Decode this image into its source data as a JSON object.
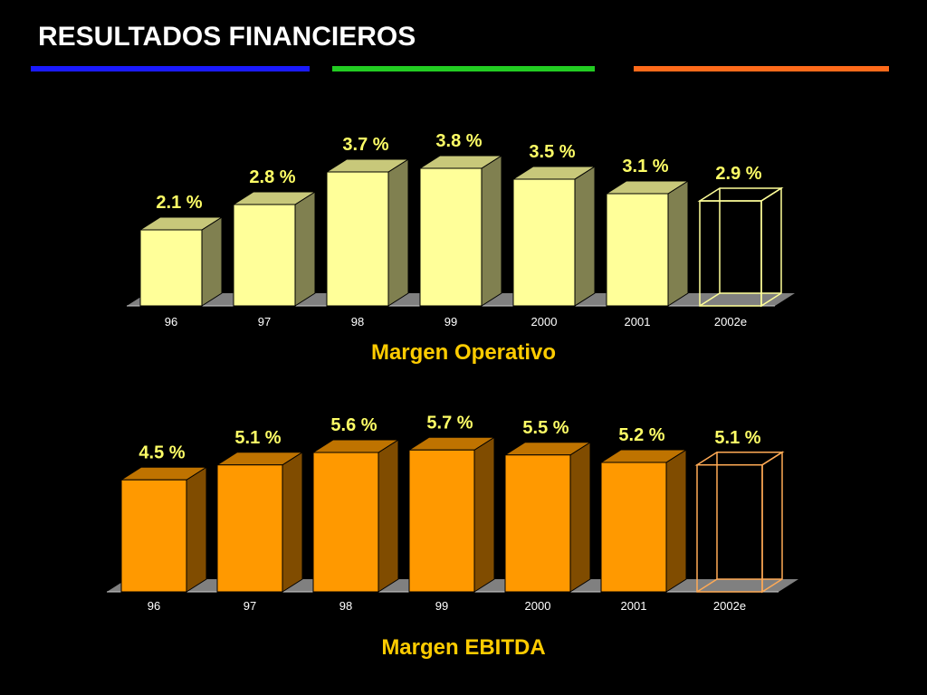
{
  "title": "RESULTADOS FINANCIEROS",
  "rules": {
    "colors": [
      "#1a1aff",
      "#22cc22",
      "#ff6a1a"
    ]
  },
  "chart_data": [
    {
      "type": "bar",
      "title": "Margen Operativo",
      "categories": [
        "96",
        "97",
        "98",
        "99",
        "2000",
        "2001",
        "2002e"
      ],
      "values": [
        2.1,
        2.8,
        3.7,
        3.8,
        3.5,
        3.1,
        2.9
      ],
      "labels": [
        "2.1 %",
        "2.8 %",
        "3.7 %",
        "3.8 %",
        "3.5 %",
        "3.1 %",
        "2.9 %"
      ],
      "estimated": [
        false,
        false,
        false,
        false,
        false,
        false,
        true
      ],
      "unit": "%",
      "ylim": [
        0,
        4
      ],
      "grid": false,
      "colors": {
        "front": "#ffff99",
        "side": "#808050",
        "top": "#c8c87a",
        "outline": "#ffff99",
        "label": "#ffff66",
        "floor": "#808080"
      }
    },
    {
      "type": "bar",
      "title": "Margen EBITDA",
      "categories": [
        "96",
        "97",
        "98",
        "99",
        "2000",
        "2001",
        "2002e"
      ],
      "values": [
        4.5,
        5.1,
        5.6,
        5.7,
        5.5,
        5.2,
        5.1
      ],
      "labels": [
        "4.5 %",
        "5.1 %",
        "5.6 %",
        "5.7 %",
        "5.5 %",
        "5.2 %",
        "5.1 %"
      ],
      "estimated": [
        false,
        false,
        false,
        false,
        false,
        false,
        true
      ],
      "unit": "%",
      "ylim": [
        0,
        6
      ],
      "grid": false,
      "colors": {
        "front": "#ff9900",
        "side": "#804c00",
        "top": "#bf7300",
        "outline": "#ffaa55",
        "label": "#ffff66",
        "floor": "#808080"
      }
    }
  ]
}
